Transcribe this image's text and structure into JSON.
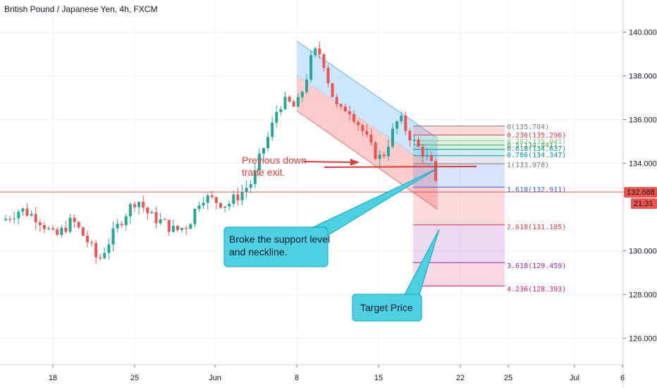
{
  "header": {
    "title": "British Pound / Japanese Yen, 4h, FXCM"
  },
  "colors": {
    "up": "#26a69a",
    "down": "#ef5350",
    "grid": "#f0f3fa",
    "channel_upper_fill": "#bbdefb",
    "channel_lower_fill": "#f8bbb8",
    "callout_fill": "#4dd0e1",
    "callout_stroke": "#00acc1",
    "price_line": "#ef5350"
  },
  "chart_data": {
    "type": "candlestick",
    "title": "British Pound / Japanese Yen, 4h, FXCM",
    "x_ticks": [
      "18",
      "25",
      "Jun",
      "8",
      "15",
      "22",
      "25",
      "Jul",
      "6"
    ],
    "y_ticks": [
      "140.000",
      "138.000",
      "136.000",
      "134.000",
      "130.000",
      "128.000",
      "126.000"
    ],
    "ylim": [
      124.4,
      142.0
    ],
    "current_price": {
      "label": "132.688",
      "value": 132.688,
      "countdown": "21:31"
    },
    "price_path": [
      {
        "x": 0,
        "y": 131.4
      },
      {
        "x": 4,
        "y": 131.9
      },
      {
        "x": 8,
        "y": 131.5
      },
      {
        "x": 12,
        "y": 130.6
      },
      {
        "x": 16,
        "y": 131.4
      },
      {
        "x": 20,
        "y": 130.3
      },
      {
        "x": 22,
        "y": 129.5
      },
      {
        "x": 25,
        "y": 130.6
      },
      {
        "x": 28,
        "y": 131.6
      },
      {
        "x": 31,
        "y": 132.4
      },
      {
        "x": 34,
        "y": 131.6
      },
      {
        "x": 37,
        "y": 131.3
      },
      {
        "x": 40,
        "y": 130.9
      },
      {
        "x": 43,
        "y": 131.2
      },
      {
        "x": 46,
        "y": 132.5
      },
      {
        "x": 49,
        "y": 132.3
      },
      {
        "x": 52,
        "y": 132.1
      },
      {
        "x": 55,
        "y": 132.6
      },
      {
        "x": 58,
        "y": 133.2
      },
      {
        "x": 60,
        "y": 134.5
      },
      {
        "x": 62,
        "y": 135.4
      },
      {
        "x": 64,
        "y": 136.7
      },
      {
        "x": 66,
        "y": 136.8
      },
      {
        "x": 68,
        "y": 136.5
      },
      {
        "x": 70,
        "y": 137.6
      },
      {
        "x": 72,
        "y": 139.1
      },
      {
        "x": 74,
        "y": 139.0
      },
      {
        "x": 76,
        "y": 137.4
      },
      {
        "x": 78,
        "y": 136.3
      },
      {
        "x": 80,
        "y": 136.6
      },
      {
        "x": 82,
        "y": 136.0
      },
      {
        "x": 84,
        "y": 135.3
      },
      {
        "x": 86,
        "y": 134.5
      },
      {
        "x": 88,
        "y": 134.2
      },
      {
        "x": 90,
        "y": 135.2
      },
      {
        "x": 92,
        "y": 136.1
      },
      {
        "x": 94,
        "y": 135.4
      },
      {
        "x": 96,
        "y": 134.8
      },
      {
        "x": 98,
        "y": 134.4
      },
      {
        "x": 99.5,
        "y": 133.9
      },
      {
        "x": 100.5,
        "y": 133.0
      }
    ],
    "annotations": {
      "previous_exit": [
        "Previous down",
        "trade exit."
      ],
      "callout_support": [
        "Broke the support level",
        "and neckline."
      ],
      "callout_target": [
        "Target Price"
      ]
    },
    "fibonacci": [
      {
        "label": "0(135.704)",
        "value": 135.704,
        "color": "#787b86"
      },
      {
        "label": "0.236(135.296)",
        "value": 135.296,
        "color": "#f23645"
      },
      {
        "label": "0.382(135.041)",
        "value": 135.041,
        "color": "#81c784"
      },
      {
        "label": "0.5(134.841)",
        "value": 134.841,
        "color": "#4caf50"
      },
      {
        "label": "0.618(134.637)",
        "value": 134.637,
        "color": "#089981"
      },
      {
        "label": "0.786(134.347)",
        "value": 134.347,
        "color": "#0097a7"
      },
      {
        "label": "1(133.978)",
        "value": 133.978,
        "color": "#787b86"
      },
      {
        "label": "1.618(132.911)",
        "value": 132.911,
        "color": "#2962ff"
      },
      {
        "label": "2.618(131.185)",
        "value": 131.185,
        "color": "#f23645"
      },
      {
        "label": "3.618(129.459)",
        "value": 129.459,
        "color": "#9c27b0"
      },
      {
        "label": "4.236(128.393)",
        "value": 128.393,
        "color": "#e91e63"
      }
    ]
  }
}
